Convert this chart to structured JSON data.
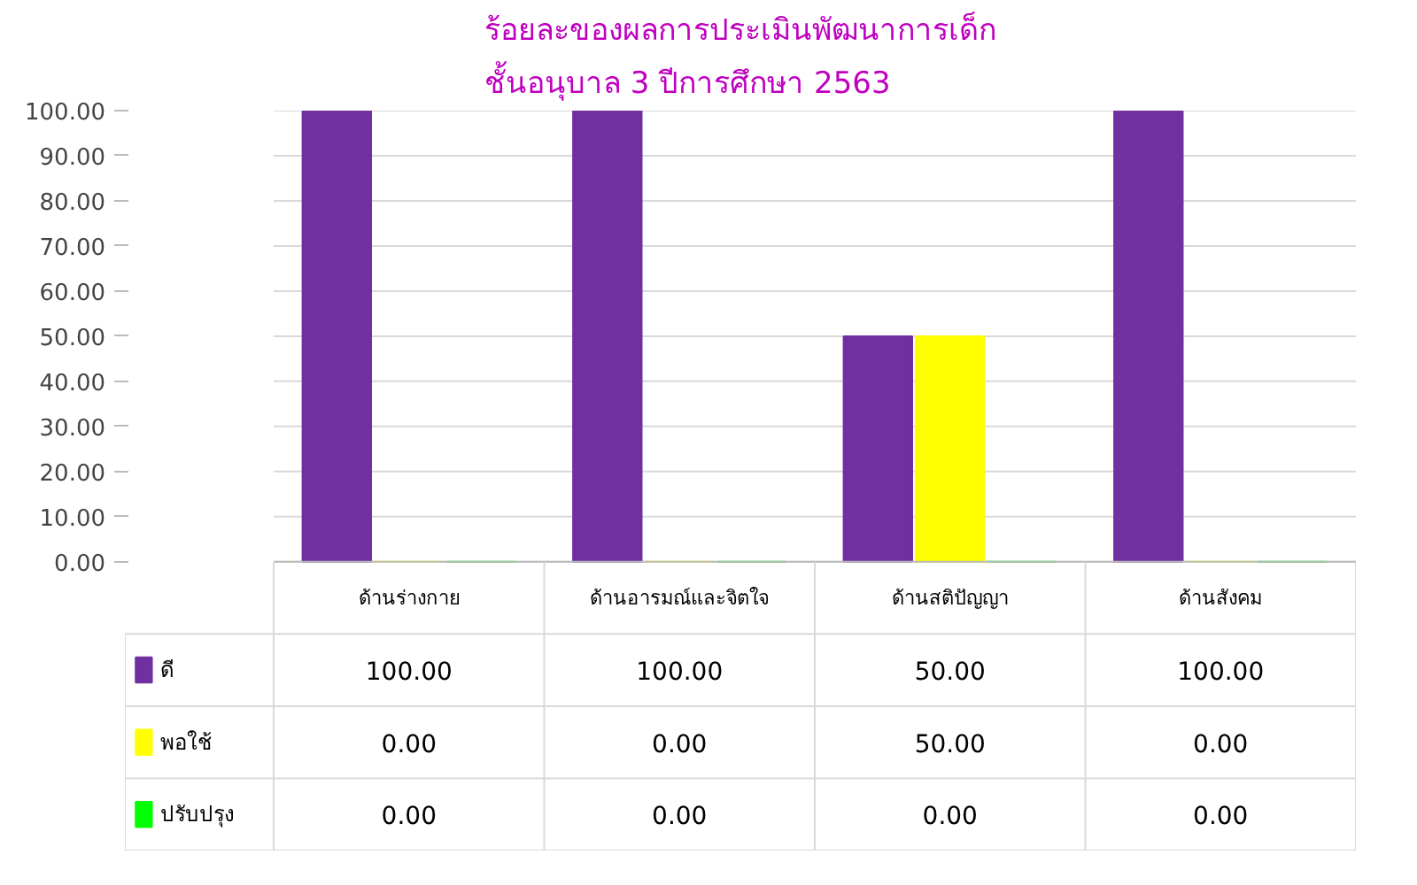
{
  "chart_data": {
    "type": "bar",
    "title": "ร้อยละของผลการประเมินพัฒนาการเด็ก\nชั้นอนุบาล 3 ปีการศึกษา 2563",
    "categories": [
      "ด้านร่างกาย",
      "ด้านอารมณ์และจิตใจ",
      "ด้านสติปัญญา",
      "ด้านสังคม"
    ],
    "series": [
      {
        "name": "ดี",
        "color": "#7030a0",
        "values": [
          100,
          100,
          50,
          100
        ],
        "value_labels": [
          "100.00",
          "100.00",
          "50.00",
          "100.00"
        ]
      },
      {
        "name": "พอใช้",
        "color": "#ffff00",
        "values": [
          0,
          0,
          50,
          0
        ],
        "value_labels": [
          "0.00",
          "0.00",
          "50.00",
          "0.00"
        ]
      },
      {
        "name": "ปรับปรุง",
        "color": "#00ff00",
        "values": [
          0,
          0,
          0,
          0
        ],
        "value_labels": [
          "0.00",
          "0.00",
          "0.00",
          "0.00"
        ]
      }
    ],
    "ylim": [
      0,
      100
    ],
    "yticks": [
      {
        "value": 0,
        "label": "0.00"
      },
      {
        "value": 10,
        "label": "10.00"
      },
      {
        "value": 20,
        "label": "20.00"
      },
      {
        "value": 30,
        "label": "30.00"
      },
      {
        "value": 40,
        "label": "40.00"
      },
      {
        "value": 50,
        "label": "50.00"
      },
      {
        "value": 60,
        "label": "60.00"
      },
      {
        "value": 70,
        "label": "70.00"
      },
      {
        "value": 80,
        "label": "80.00"
      },
      {
        "value": 90,
        "label": "90.00"
      },
      {
        "value": 100,
        "label": "100.00"
      }
    ],
    "grid": "y",
    "legend": "bottom"
  }
}
